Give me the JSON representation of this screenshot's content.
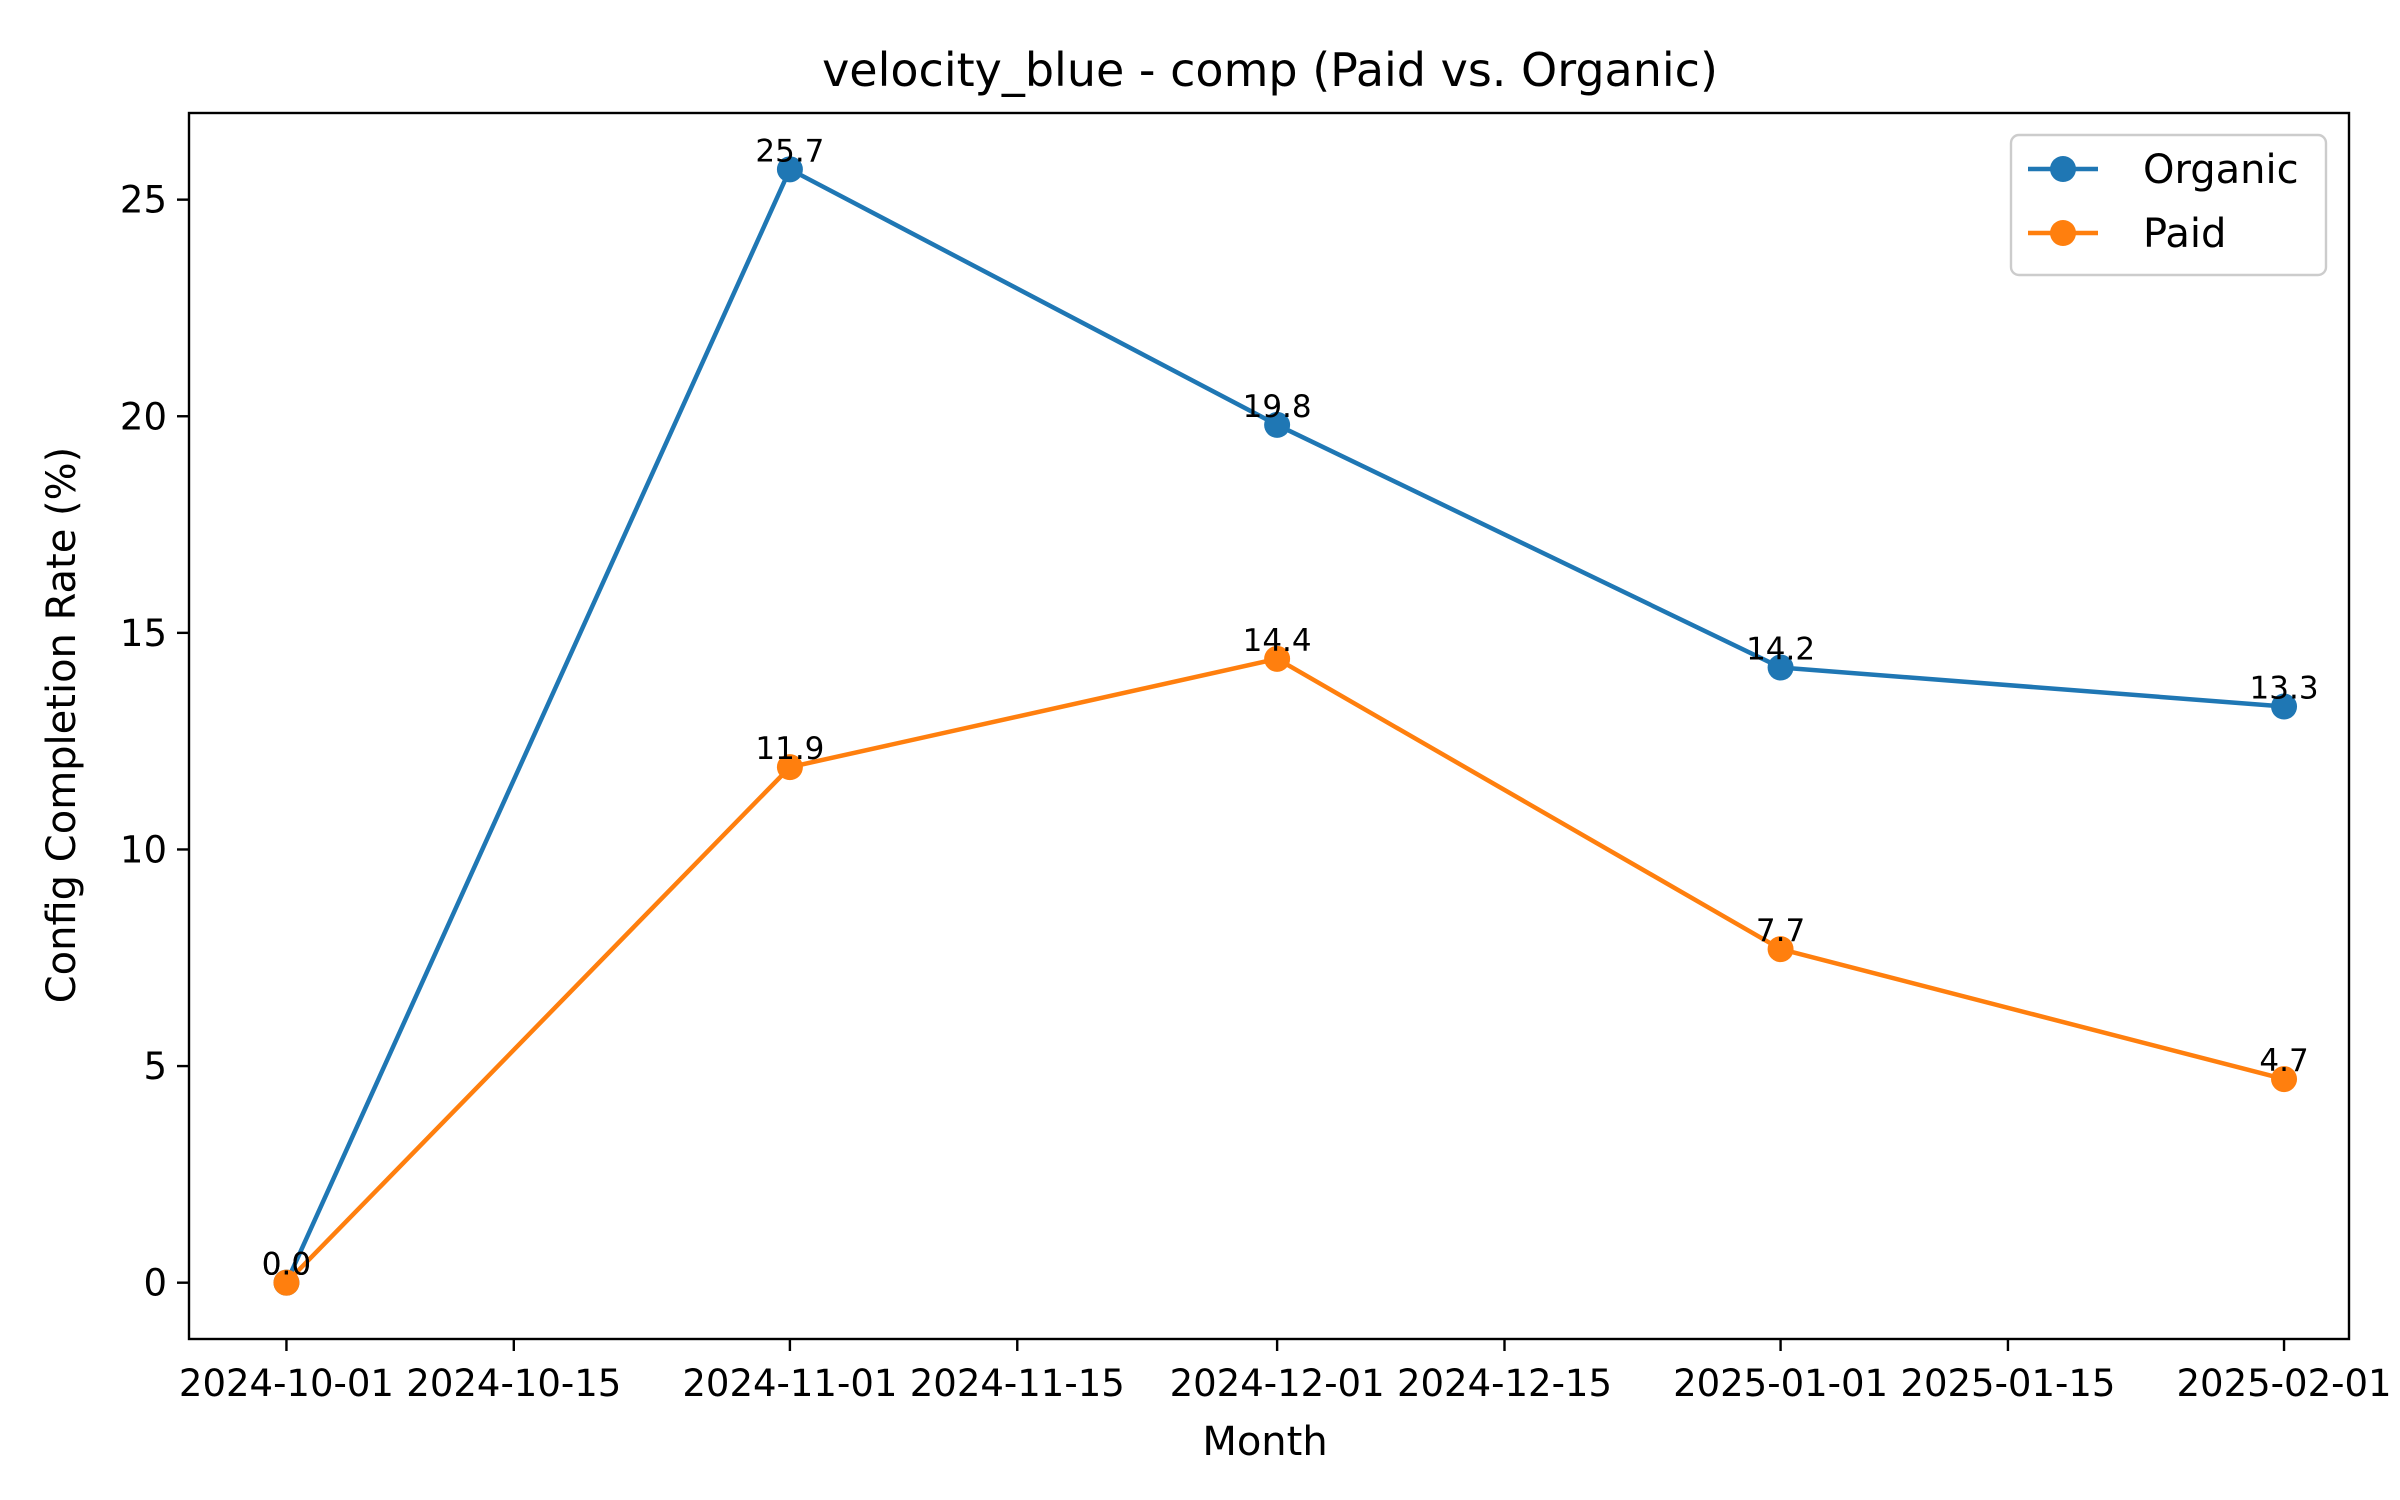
{
  "chart_data": {
    "type": "line",
    "title": "velocity_blue - comp (Paid vs. Organic)",
    "xlabel": "Month",
    "ylabel": "Config Completion Rate (%)",
    "x": [
      "2024-10-01",
      "2024-11-01",
      "2024-12-01",
      "2025-01-01",
      "2025-02-01"
    ],
    "x_ticks": [
      "2024-10-01",
      "2024-10-15",
      "2024-11-01",
      "2024-11-15",
      "2024-12-01",
      "2024-12-15",
      "2025-01-01",
      "2025-01-15",
      "2025-02-01"
    ],
    "y_ticks": [
      0,
      5,
      10,
      15,
      20,
      25
    ],
    "ylim": [
      -1.3,
      27.0
    ],
    "xlim": [
      "2024-09-25",
      "2025-02-05"
    ],
    "grid": false,
    "legend_position": "top-right",
    "series": [
      {
        "name": "Organic",
        "color": "#1f77b4",
        "values": [
          0.0,
          25.7,
          19.8,
          14.2,
          13.3
        ],
        "labels": [
          "0.0",
          "25.7",
          "19.8",
          "14.2",
          "13.3"
        ]
      },
      {
        "name": "Paid",
        "color": "#ff7f0e",
        "values": [
          0.0,
          11.9,
          14.4,
          7.7,
          4.7
        ],
        "labels": [
          "0.0",
          "11.9",
          "14.4",
          "7.7",
          "4.7"
        ]
      }
    ]
  }
}
